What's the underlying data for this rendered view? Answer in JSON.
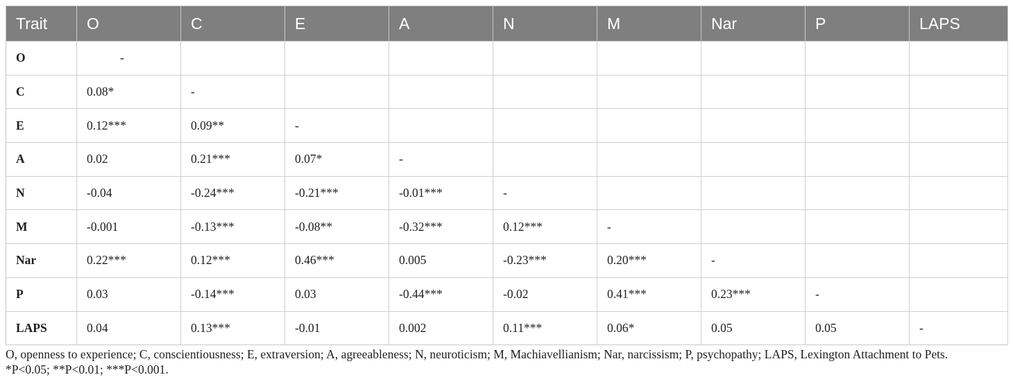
{
  "table": {
    "headers": [
      "Trait",
      "O",
      "C",
      "E",
      "A",
      "N",
      "M",
      "Nar",
      "P",
      "LAPS"
    ],
    "rows": [
      {
        "label": "O",
        "cells": [
          "-",
          "",
          "",
          "",
          "",
          "",
          "",
          "",
          ""
        ]
      },
      {
        "label": "C",
        "cells": [
          "0.08*",
          "-",
          "",
          "",
          "",
          "",
          "",
          "",
          ""
        ]
      },
      {
        "label": "E",
        "cells": [
          "0.12***",
          "0.09**",
          "-",
          "",
          "",
          "",
          "",
          "",
          ""
        ]
      },
      {
        "label": "A",
        "cells": [
          "0.02",
          "0.21***",
          "0.07*",
          "-",
          "",
          "",
          "",
          "",
          ""
        ]
      },
      {
        "label": "N",
        "cells": [
          "-0.04",
          "-0.24***",
          "-0.21***",
          "-0.01***",
          "-",
          "",
          "",
          "",
          ""
        ]
      },
      {
        "label": "M",
        "cells": [
          "-0.001",
          "-0.13***",
          "-0.08**",
          "-0.32***",
          "0.12***",
          "-",
          "",
          "",
          ""
        ]
      },
      {
        "label": "Nar",
        "cells": [
          "0.22***",
          "0.12***",
          "0.46***",
          "0.005",
          "-0.23***",
          "0.20***",
          "-",
          "",
          ""
        ]
      },
      {
        "label": "P",
        "cells": [
          "0.03",
          "-0.14***",
          "0.03",
          "-0.44***",
          "-0.02",
          "0.41***",
          "0.23***",
          "-",
          ""
        ]
      },
      {
        "label": "LAPS",
        "cells": [
          "0.04",
          "0.13***",
          "-0.01",
          "0.002",
          "0.11***",
          "0.06*",
          "0.05",
          "0.05",
          "-"
        ]
      }
    ]
  },
  "footnote": {
    "line1": "O, openness to experience; C, conscientiousness; E, extraversion; A, agreeableness; N, neuroticism; M, Machiavellianism; Nar, narcissism; P, psychopathy; LAPS, Lexington Attachment to Pets.",
    "line2": "*P<0.05; **P<0.01; ***P<0.001."
  },
  "colors": {
    "header_bg": "#7f7f7f",
    "header_text": "#ffffff",
    "grid_line": "#cfcfcf"
  }
}
